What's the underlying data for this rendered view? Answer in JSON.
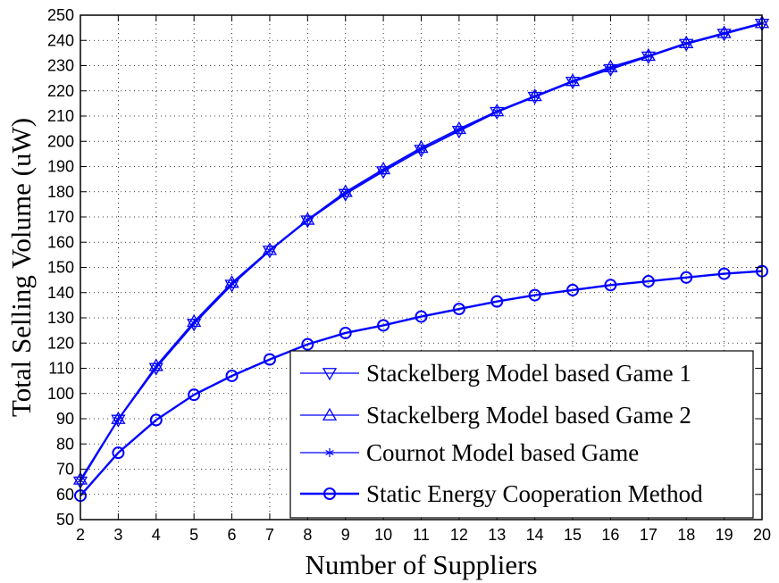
{
  "chart_data": {
    "type": "line",
    "title": "",
    "xlabel": "Number of Suppliers",
    "ylabel": "Total Selling Volume (uW)",
    "xlim": [
      2,
      20
    ],
    "ylim": [
      50,
      250
    ],
    "xticks": [
      "2",
      "3",
      "4",
      "5",
      "6",
      "7",
      "8",
      "9",
      "10",
      "11",
      "12",
      "13",
      "14",
      "15",
      "16",
      "17",
      "18",
      "19",
      "20"
    ],
    "yticks": [
      "50",
      "60",
      "70",
      "80",
      "90",
      "100",
      "110",
      "120",
      "130",
      "140",
      "150",
      "160",
      "170",
      "180",
      "190",
      "200",
      "210",
      "220",
      "230",
      "240",
      "250"
    ],
    "grid": true,
    "legend_position": "bottom-right",
    "x": [
      2,
      3,
      4,
      5,
      6,
      7,
      8,
      9,
      10,
      11,
      12,
      13,
      14,
      15,
      16,
      17,
      18,
      19,
      20
    ],
    "series": [
      {
        "name": "Stackelberg Model based Game 1",
        "marker": "triangle-down",
        "line_width": "thin",
        "color": "#0000ff",
        "values": [
          65,
          89.5,
          110,
          127.5,
          143,
          156.5,
          168.5,
          179,
          188,
          196.5,
          204,
          211.5,
          217.5,
          223.5,
          228.5,
          233.5,
          238.5,
          242.5,
          246.5
        ]
      },
      {
        "name": "Stackelberg Model based Game 2",
        "marker": "triangle-up",
        "line_width": "thin",
        "color": "#0000ff",
        "values": [
          66,
          90,
          111,
          128.5,
          144,
          157,
          169,
          180,
          189,
          197.5,
          205,
          212,
          218,
          224,
          229.5,
          234,
          239,
          243,
          247
        ]
      },
      {
        "name": "Cournot Model based Game",
        "marker": "asterisk",
        "line_width": "thin",
        "color": "#0000ff",
        "values": [
          65.5,
          89.8,
          110.5,
          128,
          143.5,
          156.8,
          168.8,
          179.5,
          188.5,
          197,
          204.5,
          211.8,
          217.8,
          223.8,
          229,
          233.8,
          238.8,
          242.8,
          246.8
        ]
      },
      {
        "name": "Static Energy Cooperation Method",
        "marker": "circle",
        "line_width": "thick",
        "color": "#0000ff",
        "values": [
          59.5,
          76.5,
          89.5,
          99.5,
          107,
          113.5,
          119.5,
          124,
          127,
          130.5,
          133.5,
          136.5,
          139,
          141,
          143,
          144.5,
          146,
          147.5,
          148.5
        ]
      }
    ]
  }
}
